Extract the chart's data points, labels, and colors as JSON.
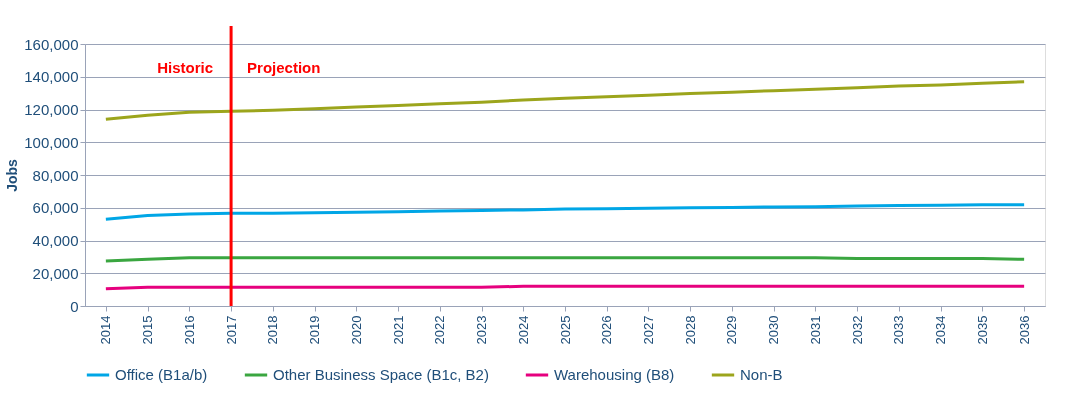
{
  "chart_data": {
    "type": "line",
    "ylabel": "Jobs",
    "categories": [
      "2014",
      "2015",
      "2016",
      "2017",
      "2018",
      "2019",
      "2020",
      "2021",
      "2022",
      "2023",
      "2024",
      "2025",
      "2026",
      "2027",
      "2028",
      "2029",
      "2030",
      "2031",
      "2032",
      "2033",
      "2034",
      "2035",
      "2036"
    ],
    "series": [
      {
        "name": "Office (B1a/b)",
        "color": "#00a6e6",
        "values": [
          53000,
          55200,
          56200,
          56600,
          56700,
          57000,
          57200,
          57600,
          58000,
          58300,
          58700,
          59200,
          59400,
          59700,
          60000,
          60200,
          60500,
          60600,
          61000,
          61300,
          61500,
          61800,
          61800
        ]
      },
      {
        "name": "Other Business Space (B1c, B2)",
        "color": "#3aa640",
        "values": [
          27500,
          28500,
          29500,
          29500,
          29500,
          29500,
          29500,
          29500,
          29500,
          29500,
          29500,
          29500,
          29500,
          29500,
          29500,
          29500,
          29500,
          29500,
          29000,
          29000,
          29000,
          29000,
          28500
        ]
      },
      {
        "name": "Warehousing (B8)",
        "color": "#e6007e",
        "values": [
          10500,
          11500,
          11500,
          11500,
          11500,
          11500,
          11500,
          11500,
          11500,
          11500,
          12000,
          12000,
          12000,
          12000,
          12000,
          12000,
          12000,
          12000,
          12000,
          12000,
          12000,
          12000,
          12000
        ]
      },
      {
        "name": "Non-B",
        "color": "#9ca51c",
        "values": [
          114000,
          116500,
          118300,
          119000,
          119500,
          120500,
          121500,
          122500,
          123500,
          124500,
          125800,
          126800,
          127800,
          128700,
          129700,
          130600,
          131500,
          132400,
          133300,
          134300,
          135000,
          136000,
          137000
        ]
      }
    ],
    "ylim": [
      0,
      160000
    ],
    "yticks": [
      0,
      {
        "value": 20000,
        "label": "20,000"
      },
      {
        "value": 40000,
        "label": "40,000"
      },
      {
        "value": 60000,
        "label": "60,000"
      },
      {
        "value": 80000,
        "label": "80,000"
      },
      {
        "value": 100000,
        "label": "100,000"
      },
      {
        "value": 120000,
        "label": "120,000"
      },
      {
        "value": 140000,
        "label": "140,000"
      },
      {
        "value": 160000,
        "label": "160,000"
      }
    ],
    "ref_lines": [
      {
        "axis": "x",
        "value": "2017",
        "label": null,
        "color": "#ff0000"
      }
    ],
    "annotations": [
      "Historic",
      "Projection"
    ],
    "grid": "y",
    "legend": "bottom",
    "line_style": "solid",
    "marker": "none"
  }
}
